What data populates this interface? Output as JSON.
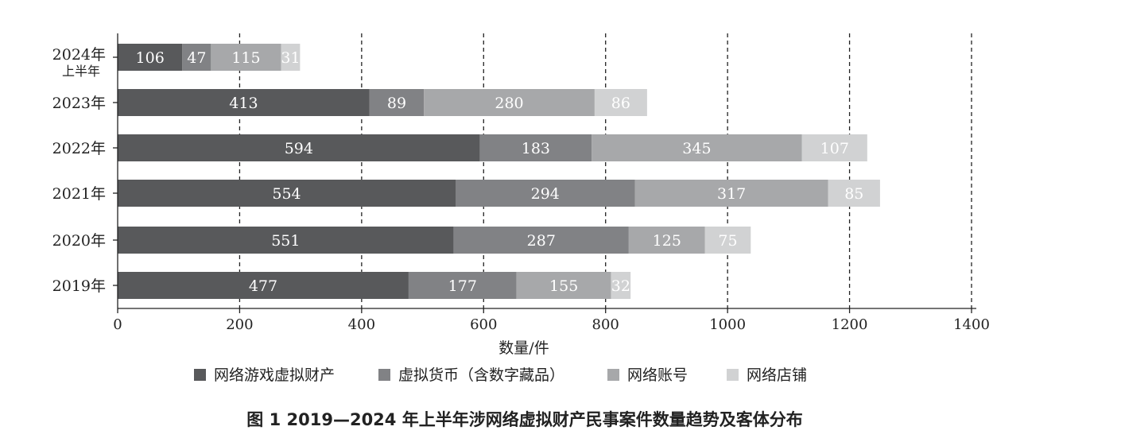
{
  "figure_caption": "图 1   2019—2024 年上半年涉网络虚拟财产民事案件数量趋势及客体分布",
  "colors": [
    "#58595b",
    "#818285",
    "#a7a8aa",
    "#d1d2d3"
  ],
  "chart_data": {
    "type": "bar",
    "orientation": "horizontal",
    "stacked": true,
    "categories": [
      "2024年\n上半年",
      "2023年",
      "2022年",
      "2021年",
      "2020年",
      "2019年"
    ],
    "series": [
      {
        "name": "网络游戏虚拟财产",
        "values": [
          106,
          413,
          594,
          554,
          551,
          477
        ]
      },
      {
        "name": "虚拟货币（含数字藏品）",
        "values": [
          47,
          89,
          183,
          294,
          287,
          177
        ]
      },
      {
        "name": "网络账号",
        "values": [
          115,
          280,
          345,
          317,
          125,
          155
        ]
      },
      {
        "name": "网络店铺",
        "values": [
          31,
          86,
          107,
          85,
          75,
          32
        ]
      }
    ],
    "xlabel": "数量/件",
    "xlim": [
      0,
      1400
    ],
    "xticks": [
      0,
      200,
      400,
      600,
      800,
      1000,
      1200,
      1400
    ],
    "grid": "vertical dashed",
    "legend_position": "bottom"
  }
}
